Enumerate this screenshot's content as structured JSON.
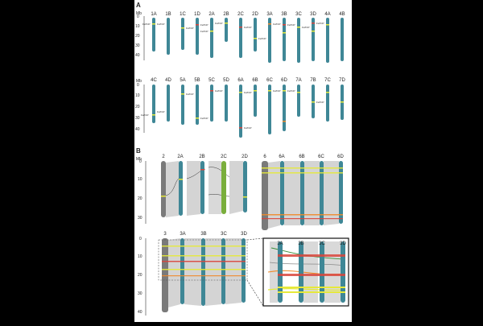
{
  "panel_a": {
    "label": "A",
    "axis_unit": "Mb",
    "axis_ticks": [
      "0",
      "10",
      "20",
      "30",
      "40"
    ],
    "row1": [
      "1A",
      "1B",
      "1C",
      "1D",
      "2A",
      "2B",
      "2C",
      "2D",
      "3A",
      "3B",
      "3C",
      "3D",
      "4A",
      "4B"
    ],
    "row2": [
      "4C",
      "4D",
      "5A",
      "5B",
      "5C",
      "5D",
      "6A",
      "6B",
      "6C",
      "6D",
      "7A",
      "7B",
      "7C",
      "7D"
    ],
    "gene_prefix": "FaTCP"
  },
  "panel_b": {
    "label": "B",
    "axis_unit": "Mb",
    "axis_ticks_top": [
      "0",
      "10",
      "20",
      "30"
    ],
    "axis_ticks_bottom": [
      "0",
      "10",
      "20",
      "30",
      "40"
    ],
    "group2": [
      "2",
      "2A",
      "2B",
      "2C",
      "2D"
    ],
    "group6": [
      "6",
      "6A",
      "6B",
      "6C",
      "6D"
    ],
    "group3": [
      "3",
      "3A",
      "3B",
      "3C",
      "3D"
    ],
    "inset": [
      "3A",
      "3B",
      "3C",
      "3D"
    ]
  },
  "colors": {
    "chromosome": "#3f8796",
    "reference": "#7a7a7a",
    "chr2c": "#7aae3c",
    "synteny": "#c9c9c9",
    "yellow": "#e6e93a",
    "red": "#d9453c",
    "orange": "#f08a2a"
  }
}
